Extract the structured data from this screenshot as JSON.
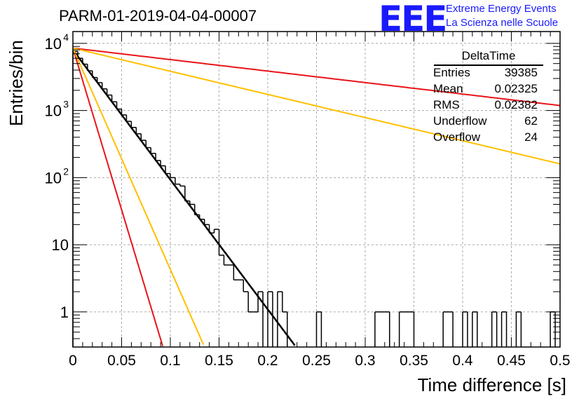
{
  "title": "PARM-01-2019-04-04-00007",
  "logo": {
    "mark": "EEE",
    "line1": "Extreme Energy Events",
    "line2": "La Scienza nelle Scuole",
    "color": "#1a1aff"
  },
  "stats": {
    "name": "DeltaTime",
    "rows": [
      {
        "label": "Entries",
        "value": "39385"
      },
      {
        "label": "Mean",
        "value": "0.02325"
      },
      {
        "label": "RMS",
        "value": "0.02382"
      },
      {
        "label": "Underflow",
        "value": "62"
      },
      {
        "label": "Overflow",
        "value": "24"
      }
    ]
  },
  "chart_data": {
    "type": "line",
    "title": "PARM-01-2019-04-04-00007",
    "xlabel": "Time difference [s]",
    "ylabel": "Entries/bin",
    "xlim": [
      0,
      0.5
    ],
    "ylim": [
      0.3,
      15000
    ],
    "log_y": true,
    "grid": true,
    "x_ticks": [
      "0",
      "0.05",
      "0.1",
      "0.15",
      "0.2",
      "0.25",
      "0.3",
      "0.35",
      "0.4",
      "0.45",
      "0.5"
    ],
    "y_ticks": [
      {
        "value": 1,
        "base": "1",
        "exp": ""
      },
      {
        "value": 10,
        "base": "10",
        "exp": ""
      },
      {
        "value": 100,
        "base": "10",
        "exp": "2"
      },
      {
        "value": 1000,
        "base": "10",
        "exp": "3"
      },
      {
        "value": 10000,
        "base": "10",
        "exp": "4"
      }
    ],
    "histogram": {
      "bin_width": 0.005,
      "x": [
        0,
        0.005,
        0.01,
        0.015,
        0.02,
        0.025,
        0.03,
        0.035,
        0.04,
        0.045,
        0.05,
        0.055,
        0.06,
        0.065,
        0.07,
        0.075,
        0.08,
        0.085,
        0.09,
        0.095,
        0.1,
        0.105,
        0.11,
        0.115,
        0.12,
        0.125,
        0.13,
        0.135,
        0.14,
        0.145,
        0.15,
        0.155,
        0.16,
        0.165,
        0.17,
        0.175,
        0.18,
        0.185,
        0.19,
        0.195,
        0.2,
        0.205,
        0.21,
        0.215,
        0.22,
        0.225,
        0.23,
        0.235,
        0.24,
        0.245,
        0.25,
        0.255,
        0.26,
        0.265,
        0.27,
        0.275,
        0.28,
        0.285,
        0.29,
        0.295,
        0.3,
        0.305,
        0.31,
        0.315,
        0.32,
        0.325,
        0.33,
        0.335,
        0.34,
        0.345,
        0.35,
        0.355,
        0.36,
        0.365,
        0.37,
        0.375,
        0.38,
        0.385,
        0.39,
        0.395,
        0.4,
        0.405,
        0.41,
        0.415,
        0.42,
        0.425,
        0.43,
        0.435,
        0.44,
        0.445,
        0.45,
        0.455,
        0.46,
        0.465,
        0.47,
        0.475,
        0.48,
        0.485,
        0.49,
        0.495
      ],
      "y": [
        7600,
        6000,
        4900,
        3900,
        3100,
        2600,
        2100,
        1700,
        1350,
        1050,
        860,
        690,
        560,
        450,
        360,
        280,
        230,
        180,
        150,
        115,
        100,
        80,
        75,
        45,
        40,
        28,
        24,
        20,
        15,
        17,
        7,
        5,
        5,
        3,
        3,
        2,
        1,
        1,
        2,
        0,
        2,
        0,
        2,
        1,
        0,
        0,
        0,
        0,
        0,
        0,
        1,
        0,
        0,
        0,
        0,
        0,
        0,
        0,
        0,
        0,
        0,
        0,
        1,
        1,
        1,
        0,
        0,
        1,
        1,
        1,
        0,
        0,
        0,
        0,
        0,
        0,
        1,
        1,
        0,
        0,
        1,
        0,
        1,
        0,
        0,
        0,
        1,
        0,
        1,
        0,
        0,
        1,
        0,
        0,
        0,
        0,
        0,
        0,
        1,
        0
      ]
    },
    "series": [
      {
        "name": "fit",
        "color": "#000000",
        "amplitude": 8000,
        "slope_per_s": -44.5,
        "range": [
          0,
          0.245
        ]
      },
      {
        "name": "",
        "color": "#e8151a",
        "amplitude": 8500,
        "slope_per_s": -3.94,
        "range": [
          0,
          0.5
        ]
      },
      {
        "name": "",
        "color": "#ffc000",
        "amplitude": 8500,
        "slope_per_s": -7.94,
        "range": [
          0,
          0.5
        ]
      },
      {
        "name": "",
        "color": "#e8151a",
        "amplitude": 8500,
        "slope_per_s": -110.9,
        "range": [
          0,
          0.103
        ]
      },
      {
        "name": "",
        "color": "#ffc000",
        "amplitude": 8500,
        "slope_per_s": -75.9,
        "range": [
          0,
          0.134
        ]
      }
    ]
  }
}
